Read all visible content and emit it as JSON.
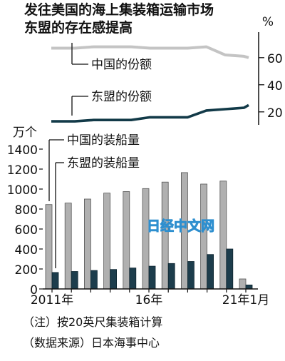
{
  "title": "发往美国的海上集装箱运输市场",
  "subtitle": "东盟的存在感提高",
  "watermark": "日经中文网",
  "notes": {
    "note": "（注）按20英尺集装箱计算",
    "source": "（数据来源）日本海事中心"
  },
  "colors": {
    "china_share": "#c4c4c4",
    "asean_share": "#123a48",
    "china_bar": "#b0b0b0",
    "asean_bar": "#1d3d4c",
    "watermark": "#2e8fcf"
  },
  "chart_data": [
    {
      "type": "line",
      "unit": "%",
      "yticks": [
        20,
        40,
        60
      ],
      "ylim": [
        12,
        72
      ],
      "x": [
        2010.75,
        2011,
        2012,
        2013,
        2014,
        2015,
        2016,
        2017,
        2018,
        2019,
        2020,
        2021,
        2021.25
      ],
      "series": [
        {
          "name": "中国的份额",
          "values": [
            67,
            67,
            67,
            68,
            68,
            68,
            67,
            67,
            67,
            68,
            62,
            61,
            60
          ]
        },
        {
          "name": "东盟的份额",
          "values": [
            13,
            13,
            13,
            14,
            14,
            14,
            16,
            16,
            16,
            21,
            22,
            23,
            25
          ]
        }
      ]
    },
    {
      "type": "bar",
      "unit": "万个",
      "categories": [
        "2011年",
        "",
        "",
        "",
        "",
        "16年",
        "",
        "",
        "",
        "",
        "21年1月"
      ],
      "ylim": [
        0,
        1400
      ],
      "yticks": [
        0,
        200,
        400,
        600,
        800,
        1000,
        1200,
        1400
      ],
      "series": [
        {
          "name": "中国的装船量",
          "values": [
            845,
            860,
            900,
            960,
            975,
            1005,
            1070,
            1165,
            1050,
            1080,
            100
          ]
        },
        {
          "name": "东盟的装船量",
          "values": [
            165,
            175,
            185,
            195,
            210,
            228,
            255,
            275,
            345,
            400,
            40
          ]
        }
      ]
    }
  ]
}
